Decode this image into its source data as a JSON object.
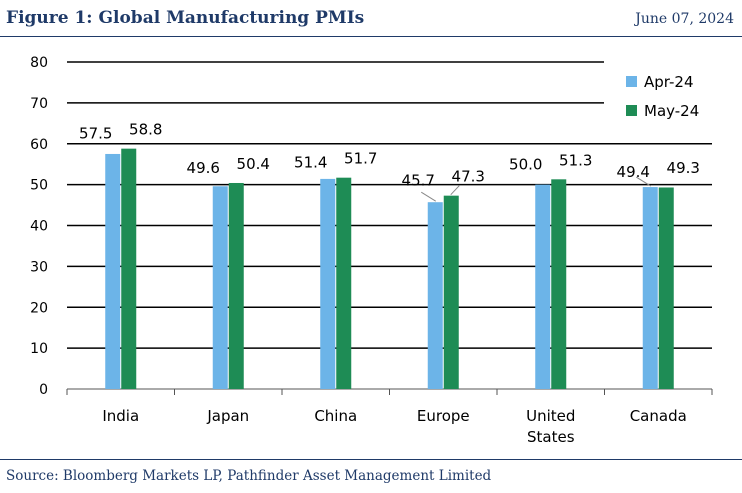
{
  "header": {
    "title": "Figure 1: Global Manufacturing PMIs",
    "date": "June 07, 2024"
  },
  "footer": {
    "source": "Source: Bloomberg Markets LP, Pathfinder Asset Management Limited"
  },
  "colors": {
    "title": "#1f3a68",
    "apr": "#6cb4e8",
    "may": "#1e8c55"
  },
  "chart_data": {
    "type": "bar",
    "title": "",
    "xlabel": "",
    "ylabel": "",
    "ylim": [
      0,
      80
    ],
    "yticks": [
      0,
      10,
      20,
      30,
      40,
      50,
      60,
      70,
      80
    ],
    "grid": true,
    "legend_position": "top-right",
    "categories": [
      "India",
      "Japan",
      "China",
      "Europe",
      "United States",
      "Canada"
    ],
    "category_lines": [
      [
        "India"
      ],
      [
        "Japan"
      ],
      [
        "China"
      ],
      [
        "Europe"
      ],
      [
        "United",
        "States"
      ],
      [
        "Canada"
      ]
    ],
    "series": [
      {
        "name": "Apr-24",
        "color": "#6cb4e8",
        "values": [
          57.5,
          49.6,
          51.4,
          45.7,
          50.0,
          49.4
        ],
        "labels": [
          "57.5",
          "49.6",
          "51.4",
          "45.7",
          "50.0",
          "49.4"
        ]
      },
      {
        "name": "May-24",
        "color": "#1e8c55",
        "values": [
          58.8,
          50.4,
          51.7,
          47.3,
          51.3,
          49.3
        ],
        "labels": [
          "58.8",
          "50.4",
          "51.7",
          "47.3",
          "51.3",
          "49.3"
        ]
      }
    ]
  }
}
